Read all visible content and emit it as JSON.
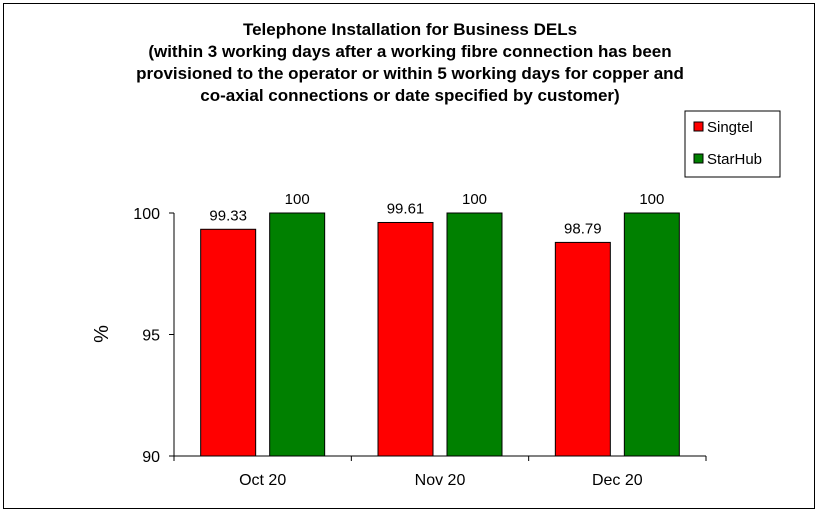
{
  "chart_data": {
    "type": "bar",
    "title_lines": [
      "Telephone Installation for Business DELs",
      "(within 3 working days after a working fibre connection has been",
      "provisioned to the operator or within 5 working days for copper and",
      "co-axial connections or date specified by customer)"
    ],
    "xlabel": "",
    "ylabel": "%",
    "categories": [
      "Oct 20",
      "Nov 20",
      "Dec 20"
    ],
    "series": [
      {
        "name": "Singtel",
        "values": [
          99.33,
          99.61,
          98.79
        ],
        "value_labels": [
          "99.33",
          "99.61",
          "98.79"
        ],
        "color": "#ff0000"
      },
      {
        "name": "StarHub",
        "values": [
          100,
          100,
          100
        ],
        "value_labels": [
          "100",
          "100",
          "100"
        ],
        "color": "#008000"
      }
    ],
    "ylim": [
      90,
      100
    ],
    "yticks": [
      90,
      95,
      100
    ],
    "ytick_labels": [
      "90",
      "95",
      "100"
    ],
    "grid": false,
    "legend_position": "top-right"
  }
}
